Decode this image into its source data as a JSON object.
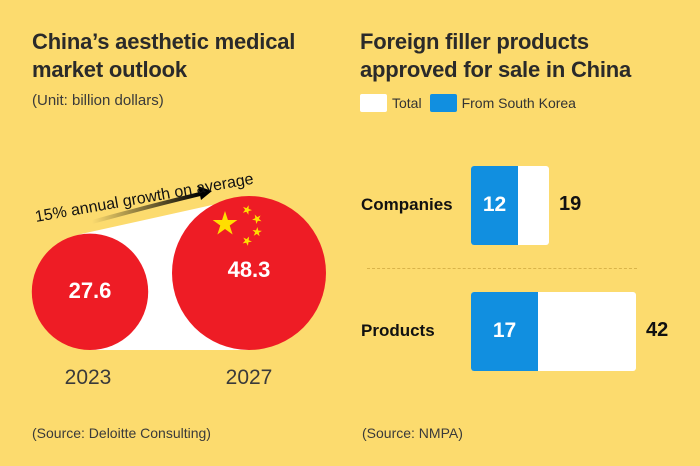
{
  "left": {
    "title": "China’s aesthetic medical market outlook",
    "unit": "(Unit: billion dollars)",
    "growth_annotation": "15% annual growth on average",
    "source": "(Source: Deloitte Consulting)"
  },
  "right": {
    "title": "Foreign filler products approved for sale in China",
    "legend": [
      {
        "label": "Total",
        "color": "#FFFFFF"
      },
      {
        "label": "From South Korea",
        "color": "#118FE0"
      }
    ],
    "source": "(Source: NMPA)"
  },
  "colors": {
    "background": "#FCDB6E",
    "china_red": "#EE1C25",
    "star_yellow": "#FFDE00",
    "korea_blue": "#118FE0",
    "total_white": "#FFFFFF"
  },
  "chart_data": [
    {
      "type": "bubble",
      "title": "China’s aesthetic medical market outlook",
      "subtitle": "(Unit: billion dollars)",
      "categories": [
        "2023",
        "2027"
      ],
      "values": [
        27.6,
        48.3
      ],
      "value_labels": [
        "27.6",
        "48.3"
      ],
      "annotation": "15% annual growth on average",
      "unit": "billion dollars"
    },
    {
      "type": "bar",
      "orientation": "horizontal",
      "title": "Foreign filler products approved for sale in China",
      "categories": [
        "Companies",
        "Products"
      ],
      "series": [
        {
          "name": "Total",
          "values": [
            19,
            42
          ]
        },
        {
          "name": "From South Korea",
          "values": [
            12,
            17
          ]
        }
      ],
      "legend": "top-left"
    }
  ]
}
